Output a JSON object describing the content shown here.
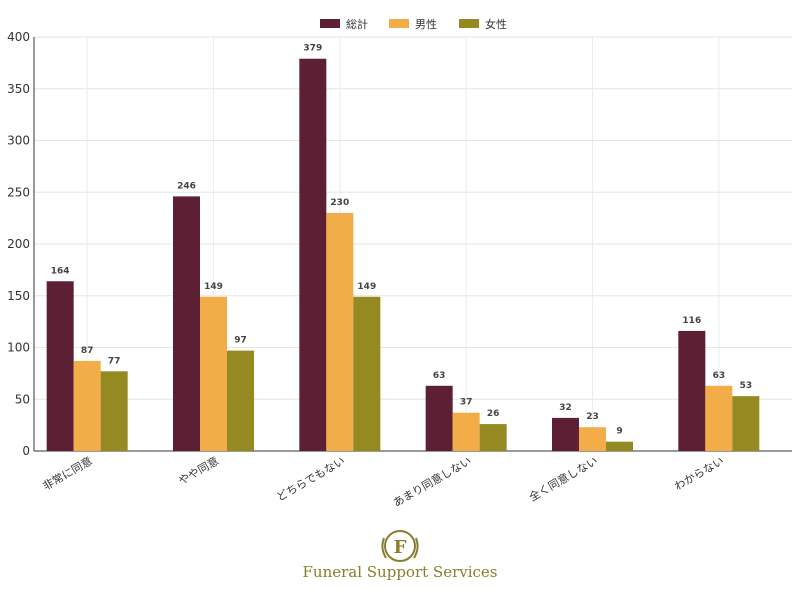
{
  "chart_data": {
    "type": "bar",
    "categories": [
      "非常に同意",
      "やや同意",
      "どちらでもない",
      "あまり同意しない",
      "全く同意しない",
      "わからない"
    ],
    "series": [
      {
        "name": "総計",
        "color": "#5c1f33",
        "values": [
          164,
          246,
          379,
          63,
          32,
          116
        ]
      },
      {
        "name": "男性",
        "color": "#f2ac48",
        "values": [
          87,
          149,
          230,
          37,
          23,
          63
        ]
      },
      {
        "name": "女性",
        "color": "#958922",
        "values": [
          77,
          97,
          149,
          26,
          9,
          53
        ]
      }
    ],
    "ylim": [
      0,
      400
    ],
    "yticks": [
      0,
      50,
      100,
      150,
      200,
      250,
      300,
      350,
      400
    ],
    "grid": true,
    "legend": "top-center",
    "data_labels": true
  },
  "logo": {
    "letter": "F",
    "text": "Funeral Support Services",
    "color": "#8a7d2b"
  }
}
